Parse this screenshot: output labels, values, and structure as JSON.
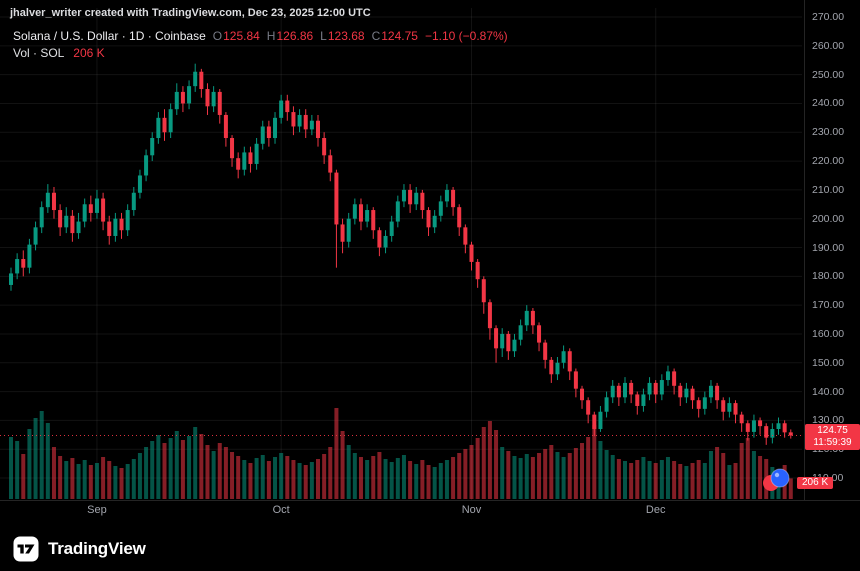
{
  "attribution": "jhalver_writer created with TradingView.com, Dec 23, 2025 12:00 UTC",
  "legend": {
    "title": "Solana / U.S. Dollar · 1D · Coinbase",
    "ohlc": {
      "o_label": "O",
      "o": "125.84",
      "h_label": "H",
      "h": "126.86",
      "l_label": "L",
      "l": "123.68",
      "c_label": "C",
      "c": "124.75",
      "change": "−1.10 (−0.87%)"
    },
    "volume_label": "Vol · SOL",
    "volume_value": "206 K"
  },
  "price_axis": {
    "badge_price": "124.75",
    "badge_countdown": "11:59:39",
    "volume_badge": "206 K"
  },
  "footer": {
    "brand": "TradingView"
  },
  "colors": {
    "background": "#000000",
    "up": "#089981",
    "down": "#f23645",
    "vol_up": "rgba(8,153,129,0.55)",
    "vol_down": "rgba(242,54,69,0.55)",
    "grid": "rgba(255,255,255,0.07)",
    "border": "rgba(255,255,255,0.14)",
    "axis_text": "#a2a5ad",
    "badge": "#f23645"
  },
  "chart_data": {
    "type": "candlestick",
    "title": "Solana / U.S. Dollar · 1D · Coinbase",
    "symbol": "Solana / U.S. Dollar",
    "interval": "1D",
    "exchange": "Coinbase",
    "last_ohlc": {
      "open": 125.84,
      "high": 126.86,
      "low": 123.68,
      "close": 124.75,
      "change": -1.1,
      "change_pct": -0.87
    },
    "last_volume_k": 206,
    "countdown": "11:59:39",
    "ylim": [
      110,
      270
    ],
    "grid": true,
    "price_ticks": [
      "270.00",
      "260.00",
      "250.00",
      "240.00",
      "230.00",
      "220.00",
      "210.00",
      "200.00",
      "190.00",
      "180.00",
      "170.00",
      "160.00",
      "150.00",
      "140.00",
      "130.00",
      "120.00",
      "110.00"
    ],
    "time_labels": [
      {
        "text": "Sep",
        "index": 14
      },
      {
        "text": "Oct",
        "index": 44
      },
      {
        "text": "Nov",
        "index": 75
      },
      {
        "text": "Dec",
        "index": 105
      }
    ],
    "columns": [
      "date",
      "open",
      "high",
      "low",
      "close",
      "volume_k"
    ],
    "candles": [
      [
        "Aug 18",
        177,
        183,
        175,
        181,
        620
      ],
      [
        "Aug 19",
        181,
        188,
        179,
        186,
        580
      ],
      [
        "Aug 20",
        186,
        189,
        180,
        183,
        450
      ],
      [
        "Aug 21",
        183,
        193,
        181,
        191,
        700
      ],
      [
        "Aug 22",
        191,
        199,
        189,
        197,
        810
      ],
      [
        "Aug 23",
        197,
        206,
        195,
        204,
        880
      ],
      [
        "Aug 24",
        204,
        212,
        202,
        209,
        760
      ],
      [
        "Aug 25",
        209,
        211,
        200,
        203,
        520
      ],
      [
        "Aug 26",
        203,
        205,
        194,
        197,
        430
      ],
      [
        "Aug 27",
        197,
        204,
        195,
        201,
        380
      ],
      [
        "Aug 28",
        201,
        203,
        192,
        195,
        410
      ],
      [
        "Aug 29",
        195,
        202,
        193,
        199,
        350
      ],
      [
        "Aug 30",
        199,
        207,
        197,
        205,
        390
      ],
      [
        "Aug 31",
        205,
        208,
        199,
        202,
        340
      ],
      [
        "Sep 1",
        202,
        210,
        200,
        207,
        360
      ],
      [
        "Sep 2",
        207,
        209,
        196,
        199,
        420
      ],
      [
        "Sep 3",
        199,
        201,
        191,
        194,
        380
      ],
      [
        "Sep 4",
        194,
        202,
        192,
        200,
        330
      ],
      [
        "Sep 5",
        200,
        202,
        193,
        196,
        310
      ],
      [
        "Sep 6",
        196,
        205,
        194,
        203,
        350
      ],
      [
        "Sep 7",
        203,
        211,
        201,
        209,
        400
      ],
      [
        "Sep 8",
        209,
        217,
        207,
        215,
        460
      ],
      [
        "Sep 9",
        215,
        224,
        213,
        222,
        520
      ],
      [
        "Sep 10",
        222,
        230,
        220,
        228,
        580
      ],
      [
        "Sep 11",
        228,
        237,
        226,
        235,
        640
      ],
      [
        "Sep 12",
        235,
        238,
        227,
        230,
        560
      ],
      [
        "Sep 13",
        230,
        240,
        228,
        238,
        610
      ],
      [
        "Sep 14",
        238,
        247,
        236,
        244,
        680
      ],
      [
        "Sep 15",
        244,
        246,
        237,
        240,
        590
      ],
      [
        "Sep 16",
        240,
        248,
        238,
        246,
        630
      ],
      [
        "Sep 17",
        246,
        253.8,
        244,
        251,
        720
      ],
      [
        "Sep 18",
        251,
        252,
        242,
        245,
        650
      ],
      [
        "Sep 19",
        245,
        247,
        236,
        239,
        540
      ],
      [
        "Sep 20",
        239,
        246,
        237,
        244,
        480
      ],
      [
        "Sep 21",
        244,
        245,
        233,
        236,
        560
      ],
      [
        "Sep 22",
        236,
        237,
        225,
        228,
        520
      ],
      [
        "Sep 23",
        228,
        229,
        218,
        221,
        470
      ],
      [
        "Sep 24",
        221,
        223,
        214,
        217,
        430
      ],
      [
        "Sep 25",
        217,
        225,
        215,
        223,
        390
      ],
      [
        "Sep 26",
        223,
        225,
        216,
        219,
        360
      ],
      [
        "Sep 27",
        219,
        228,
        217,
        226,
        410
      ],
      [
        "Sep 28",
        226,
        234,
        224,
        232,
        440
      ],
      [
        "Sep 29",
        232,
        234,
        225,
        228,
        380
      ],
      [
        "Sep 30",
        228,
        237,
        226,
        235,
        420
      ],
      [
        "Oct 1",
        235,
        243,
        233,
        241,
        460
      ],
      [
        "Oct 2",
        241,
        243,
        234,
        237,
        430
      ],
      [
        "Oct 3",
        237,
        239,
        229,
        232,
        390
      ],
      [
        "Oct 4",
        232,
        238,
        230,
        236,
        360
      ],
      [
        "Oct 5",
        236,
        238,
        228,
        231,
        340
      ],
      [
        "Oct 6",
        231,
        236,
        229,
        234,
        370
      ],
      [
        "Oct 7",
        234,
        236,
        225,
        228,
        400
      ],
      [
        "Oct 8",
        228,
        230,
        219,
        222,
        450
      ],
      [
        "Oct 9",
        222,
        224,
        213,
        216,
        520
      ],
      [
        "Oct 10",
        216,
        217,
        183,
        198,
        910
      ],
      [
        "Oct 11",
        198,
        200,
        188,
        192,
        680
      ],
      [
        "Oct 12",
        192,
        202,
        190,
        200,
        540
      ],
      [
        "Oct 13",
        200,
        207,
        198,
        205,
        460
      ],
      [
        "Oct 14",
        205,
        207,
        196,
        199,
        420
      ],
      [
        "Oct 15",
        199,
        205,
        197,
        203,
        390
      ],
      [
        "Oct 16",
        203,
        204,
        193,
        196,
        430
      ],
      [
        "Oct 17",
        196,
        197,
        187,
        190,
        470
      ],
      [
        "Oct 18",
        190,
        196,
        188,
        194,
        400
      ],
      [
        "Oct 19",
        194,
        201,
        192,
        199,
        370
      ],
      [
        "Oct 20",
        199,
        208,
        197,
        206,
        410
      ],
      [
        "Oct 21",
        206,
        212,
        204,
        210,
        440
      ],
      [
        "Oct 22",
        210,
        212,
        202,
        205,
        380
      ],
      [
        "Oct 23",
        205,
        211,
        203,
        209,
        350
      ],
      [
        "Oct 24",
        209,
        210,
        200,
        203,
        390
      ],
      [
        "Oct 25",
        203,
        204,
        194,
        197,
        340
      ],
      [
        "Oct 26",
        197,
        203,
        195,
        201,
        320
      ],
      [
        "Oct 27",
        201,
        208,
        199,
        206,
        360
      ],
      [
        "Oct 28",
        206,
        212,
        204,
        210,
        390
      ],
      [
        "Oct 29",
        210,
        211,
        201,
        204,
        420
      ],
      [
        "Oct 30",
        204,
        205,
        194,
        197,
        460
      ],
      [
        "Oct 31",
        197,
        198,
        188,
        191,
        500
      ],
      [
        "Nov 1",
        191,
        192,
        182,
        185,
        540
      ],
      [
        "Nov 2",
        185,
        186,
        176,
        179,
        610
      ],
      [
        "Nov 3",
        179,
        180,
        167,
        171,
        720
      ],
      [
        "Nov 4",
        171,
        172,
        158,
        162,
        780
      ],
      [
        "Nov 5",
        162,
        163,
        150,
        155,
        690
      ],
      [
        "Nov 6",
        155,
        162,
        152,
        160,
        520
      ],
      [
        "Nov 7",
        160,
        161,
        151,
        154,
        480
      ],
      [
        "Nov 8",
        154,
        160,
        152,
        158,
        430
      ],
      [
        "Nov 9",
        158,
        165,
        156,
        163,
        410
      ],
      [
        "Nov 10",
        163,
        170,
        161,
        168,
        450
      ],
      [
        "Nov 11",
        168,
        169,
        160,
        163,
        420
      ],
      [
        "Nov 12",
        163,
        164,
        154,
        157,
        460
      ],
      [
        "Nov 13",
        157,
        158,
        148,
        151,
        500
      ],
      [
        "Nov 14",
        151,
        152,
        143,
        146,
        540
      ],
      [
        "Nov 15",
        146,
        152,
        144,
        150,
        470
      ],
      [
        "Nov 16",
        150,
        156,
        148,
        154,
        420
      ],
      [
        "Nov 17",
        154,
        155,
        144,
        147,
        460
      ],
      [
        "Nov 18",
        147,
        148,
        138,
        141,
        510
      ],
      [
        "Nov 19",
        141,
        142,
        134,
        137,
        560
      ],
      [
        "Nov 20",
        137,
        138,
        129,
        132,
        620
      ],
      [
        "Nov 21",
        132,
        133,
        124.5,
        127,
        740
      ],
      [
        "Nov 22",
        127,
        135,
        126,
        133,
        580
      ],
      [
        "Nov 23",
        133,
        140,
        131,
        138,
        490
      ],
      [
        "Nov 24",
        138,
        144,
        136,
        142,
        440
      ],
      [
        "Nov 25",
        142,
        143,
        135,
        138,
        400
      ],
      [
        "Nov 26",
        138,
        145,
        136,
        143,
        380
      ],
      [
        "Nov 27",
        143,
        144,
        136,
        139,
        360
      ],
      [
        "Nov 28",
        139,
        140,
        132,
        135,
        390
      ],
      [
        "Nov 29",
        135,
        141,
        133,
        139,
        420
      ],
      [
        "Nov 30",
        139,
        145,
        137,
        143,
        380
      ],
      [
        "Dec 1",
        143,
        144,
        136,
        139,
        360
      ],
      [
        "Dec 2",
        139,
        146,
        137,
        144,
        390
      ],
      [
        "Dec 3",
        144,
        149,
        142,
        147,
        420
      ],
      [
        "Dec 4",
        147,
        148,
        139,
        142,
        380
      ],
      [
        "Dec 5",
        142,
        143,
        135,
        138,
        350
      ],
      [
        "Dec 6",
        138,
        143,
        136,
        141,
        330
      ],
      [
        "Dec 7",
        141,
        142,
        134,
        137,
        360
      ],
      [
        "Dec 8",
        137,
        138,
        131,
        134,
        390
      ],
      [
        "Dec 9",
        134,
        140,
        132,
        138,
        360
      ],
      [
        "Dec 10",
        138,
        144,
        136,
        142,
        480
      ],
      [
        "Dec 11",
        142,
        143,
        134,
        137,
        520
      ],
      [
        "Dec 12",
        137,
        138,
        130,
        133,
        460
      ],
      [
        "Dec 13",
        133,
        138,
        131,
        136,
        340
      ],
      [
        "Dec 14",
        136,
        137,
        129,
        132,
        360
      ],
      [
        "Dec 15",
        132,
        133,
        126,
        129,
        560
      ],
      [
        "Dec 16",
        129,
        130,
        123,
        126,
        610
      ],
      [
        "Dec 17",
        126,
        132,
        124,
        130,
        480
      ],
      [
        "Dec 18",
        130,
        131,
        125,
        128,
        430
      ],
      [
        "Dec 19",
        128,
        129,
        121.5,
        124,
        400
      ],
      [
        "Dec 20",
        124,
        129,
        122,
        127,
        320
      ],
      [
        "Dec 21",
        127,
        131,
        125,
        129,
        290
      ],
      [
        "Dec 22",
        129,
        130,
        124,
        125.84,
        340
      ],
      [
        "Dec 23",
        125.84,
        126.86,
        123.68,
        124.75,
        206
      ]
    ]
  }
}
